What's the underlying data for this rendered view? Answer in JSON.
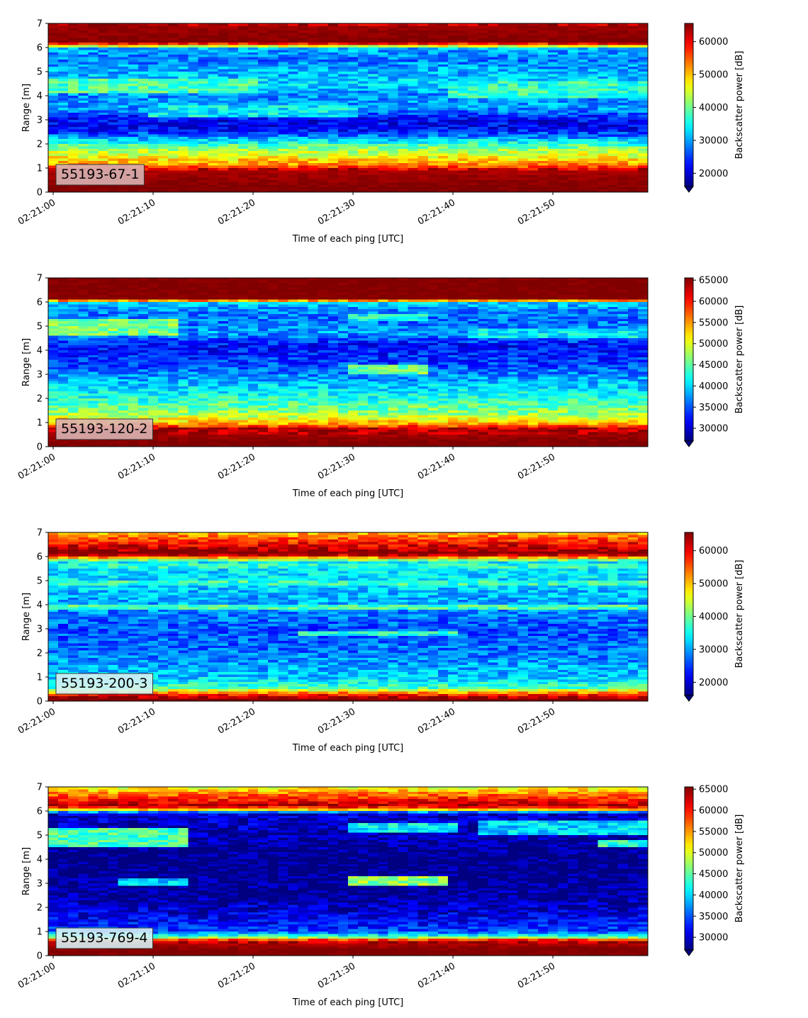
{
  "chart_data": [
    {
      "type": "heatmap",
      "tag": "55193-67-1",
      "xlabel": "Time of each ping [UTC]",
      "ylabel": "Range [m]",
      "x_ticks": [
        "02:21:00",
        "02:21:10",
        "02:21:20",
        "02:21:30",
        "02:21:40",
        "02:21:50"
      ],
      "x_range_seconds": [
        0,
        59.5
      ],
      "y_ticks": [
        0,
        1,
        2,
        3,
        4,
        5,
        6,
        7
      ],
      "ylim": [
        0,
        7
      ],
      "colorbar_label": "Backscatter power [dB]",
      "colorbar_ticks": [
        20000,
        30000,
        40000,
        50000,
        60000
      ],
      "colorbar_range": [
        16000,
        65535
      ],
      "colormap": "jet",
      "tag_color": "#d9b3b3",
      "profile": [
        {
          "range": 0.2,
          "value": 65535
        },
        {
          "range": 0.9,
          "value": 63500
        },
        {
          "range": 1.15,
          "value": 52000
        },
        {
          "range": 1.5,
          "value": 46000
        },
        {
          "range": 1.9,
          "value": 40000
        },
        {
          "range": 2.2,
          "value": 31000
        },
        {
          "range": 2.6,
          "value": 22000
        },
        {
          "range": 3.0,
          "value": 22000
        },
        {
          "range": 3.5,
          "value": 30000
        },
        {
          "range": 4.0,
          "value": 29000
        },
        {
          "range": 4.5,
          "value": 33000
        },
        {
          "range": 5.0,
          "value": 31000
        },
        {
          "range": 5.5,
          "value": 28000
        },
        {
          "range": 5.95,
          "value": 31000
        },
        {
          "range": 6.08,
          "value": 50000
        },
        {
          "range": 6.2,
          "value": 65535
        },
        {
          "range": 6.9,
          "value": 64000
        },
        {
          "range": 7.0,
          "value": 60000
        }
      ],
      "blobs": [
        {
          "t0": 0,
          "t1": 20,
          "r0": 4.1,
          "r1": 4.7,
          "value": 38000
        },
        {
          "t0": 40,
          "t1": 59.5,
          "r0": 3.9,
          "r1": 4.6,
          "value": 37000
        },
        {
          "t0": 10,
          "t1": 30,
          "r0": 3.1,
          "r1": 3.6,
          "value": 34000
        }
      ]
    },
    {
      "type": "heatmap",
      "tag": "55193-120-2",
      "xlabel": "Time of each ping [UTC]",
      "ylabel": "Range [m]",
      "x_ticks": [
        "02:21:00",
        "02:21:10",
        "02:21:20",
        "02:21:30",
        "02:21:40",
        "02:21:50"
      ],
      "x_range_seconds": [
        0,
        59.5
      ],
      "y_ticks": [
        0,
        1,
        2,
        3,
        4,
        5,
        6,
        7
      ],
      "ylim": [
        0,
        7
      ],
      "colorbar_label": "Backscatter power [dB]",
      "colorbar_ticks": [
        30000,
        35000,
        40000,
        45000,
        50000,
        55000,
        60000,
        65000
      ],
      "colorbar_range": [
        27000,
        65535
      ],
      "colormap": "jet",
      "tag_color": "#d9b3b3",
      "profile": [
        {
          "range": 0.2,
          "value": 65535
        },
        {
          "range": 0.75,
          "value": 63000
        },
        {
          "range": 0.95,
          "value": 54000
        },
        {
          "range": 1.3,
          "value": 48000
        },
        {
          "range": 1.8,
          "value": 44000
        },
        {
          "range": 2.3,
          "value": 41000
        },
        {
          "range": 2.8,
          "value": 38000
        },
        {
          "range": 3.5,
          "value": 34000
        },
        {
          "range": 4.2,
          "value": 32000
        },
        {
          "range": 4.7,
          "value": 38000
        },
        {
          "range": 5.2,
          "value": 36000
        },
        {
          "range": 5.7,
          "value": 37000
        },
        {
          "range": 5.98,
          "value": 40000
        },
        {
          "range": 6.05,
          "value": 55000
        },
        {
          "range": 6.15,
          "value": 65535
        },
        {
          "range": 7.0,
          "value": 65535
        }
      ],
      "blobs": [
        {
          "t0": 0,
          "t1": 12,
          "r0": 4.6,
          "r1": 5.3,
          "value": 46000
        },
        {
          "t0": 30,
          "t1": 37,
          "r0": 3.0,
          "r1": 3.35,
          "value": 46000
        },
        {
          "t0": 30,
          "t1": 37,
          "r0": 5.2,
          "r1": 5.5,
          "value": 42000
        },
        {
          "t0": 42,
          "t1": 59.5,
          "r0": 4.5,
          "r1": 4.9,
          "value": 41000
        }
      ]
    },
    {
      "type": "heatmap",
      "tag": "55193-200-3",
      "xlabel": "Time of each ping [UTC]",
      "ylabel": "Range [m]",
      "x_ticks": [
        "02:21:00",
        "02:21:10",
        "02:21:20",
        "02:21:30",
        "02:21:40",
        "02:21:50"
      ],
      "x_range_seconds": [
        0,
        59.5
      ],
      "y_ticks": [
        0,
        1,
        2,
        3,
        4,
        5,
        6,
        7
      ],
      "ylim": [
        0,
        7
      ],
      "colorbar_label": "Backscatter power [dB]",
      "colorbar_ticks": [
        20000,
        30000,
        40000,
        50000,
        60000
      ],
      "colorbar_range": [
        16000,
        65535
      ],
      "colormap": "jet",
      "tag_color": "#d6f1f3",
      "profile": [
        {
          "range": 0.1,
          "value": 65535
        },
        {
          "range": 0.3,
          "value": 56000
        },
        {
          "range": 0.55,
          "value": 38000
        },
        {
          "range": 1.0,
          "value": 32000
        },
        {
          "range": 2.0,
          "value": 28000
        },
        {
          "range": 3.0,
          "value": 26000
        },
        {
          "range": 4.0,
          "value": 30000
        },
        {
          "range": 5.0,
          "value": 33000
        },
        {
          "range": 5.8,
          "value": 34000
        },
        {
          "range": 5.9,
          "value": 48000
        },
        {
          "range": 6.1,
          "value": 65535
        },
        {
          "range": 6.5,
          "value": 60000
        },
        {
          "range": 6.8,
          "value": 54000
        },
        {
          "range": 7.0,
          "value": 50000
        }
      ],
      "blobs": [
        {
          "t0": 0,
          "t1": 59.5,
          "r0": 3.8,
          "r1": 4.0,
          "value": 38000
        },
        {
          "t0": 0,
          "t1": 59.5,
          "r0": 4.8,
          "r1": 5.0,
          "value": 37000
        },
        {
          "t0": 0,
          "t1": 59.5,
          "r0": 5.5,
          "r1": 5.7,
          "value": 36000
        },
        {
          "t0": 25,
          "t1": 40,
          "r0": 2.7,
          "r1": 2.9,
          "value": 36000
        }
      ]
    },
    {
      "type": "heatmap",
      "tag": "55193-769-4",
      "xlabel": "Time of each ping [UTC]",
      "ylabel": "Range [m]",
      "x_ticks": [
        "02:21:00",
        "02:21:10",
        "02:21:20",
        "02:21:30",
        "02:21:40",
        "02:21:50"
      ],
      "x_range_seconds": [
        0,
        59.5
      ],
      "y_ticks": [
        0,
        1,
        2,
        3,
        4,
        5,
        6,
        7
      ],
      "ylim": [
        0,
        7
      ],
      "colorbar_label": "Backscatter power [dB]",
      "colorbar_ticks": [
        30000,
        35000,
        40000,
        45000,
        50000,
        55000,
        60000,
        65000
      ],
      "colorbar_range": [
        27000,
        65535
      ],
      "colormap": "jet",
      "tag_color": "#d6f1f3",
      "profile": [
        {
          "range": 0.2,
          "value": 65535
        },
        {
          "range": 0.62,
          "value": 63000
        },
        {
          "range": 0.72,
          "value": 48000
        },
        {
          "range": 1.0,
          "value": 34000
        },
        {
          "range": 1.6,
          "value": 31000
        },
        {
          "range": 2.5,
          "value": 28000
        },
        {
          "range": 3.5,
          "value": 27000
        },
        {
          "range": 4.2,
          "value": 27000
        },
        {
          "range": 5.0,
          "value": 29000
        },
        {
          "range": 5.9,
          "value": 30000
        },
        {
          "range": 6.05,
          "value": 52000
        },
        {
          "range": 6.2,
          "value": 64000
        },
        {
          "range": 6.6,
          "value": 58000
        },
        {
          "range": 7.0,
          "value": 50000
        }
      ],
      "blobs": [
        {
          "t0": 0,
          "t1": 13,
          "r0": 4.5,
          "r1": 5.3,
          "value": 44000
        },
        {
          "t0": 30,
          "t1": 39,
          "r0": 2.95,
          "r1": 3.3,
          "value": 47000
        },
        {
          "t0": 30,
          "t1": 40,
          "r0": 5.1,
          "r1": 5.45,
          "value": 41000
        },
        {
          "t0": 43,
          "t1": 59.5,
          "r0": 5.0,
          "r1": 5.6,
          "value": 40000
        },
        {
          "t0": 55,
          "t1": 59.5,
          "r0": 4.5,
          "r1": 4.8,
          "value": 43000
        },
        {
          "t0": 7,
          "t1": 13,
          "r0": 2.9,
          "r1": 3.15,
          "value": 40000
        }
      ]
    }
  ]
}
